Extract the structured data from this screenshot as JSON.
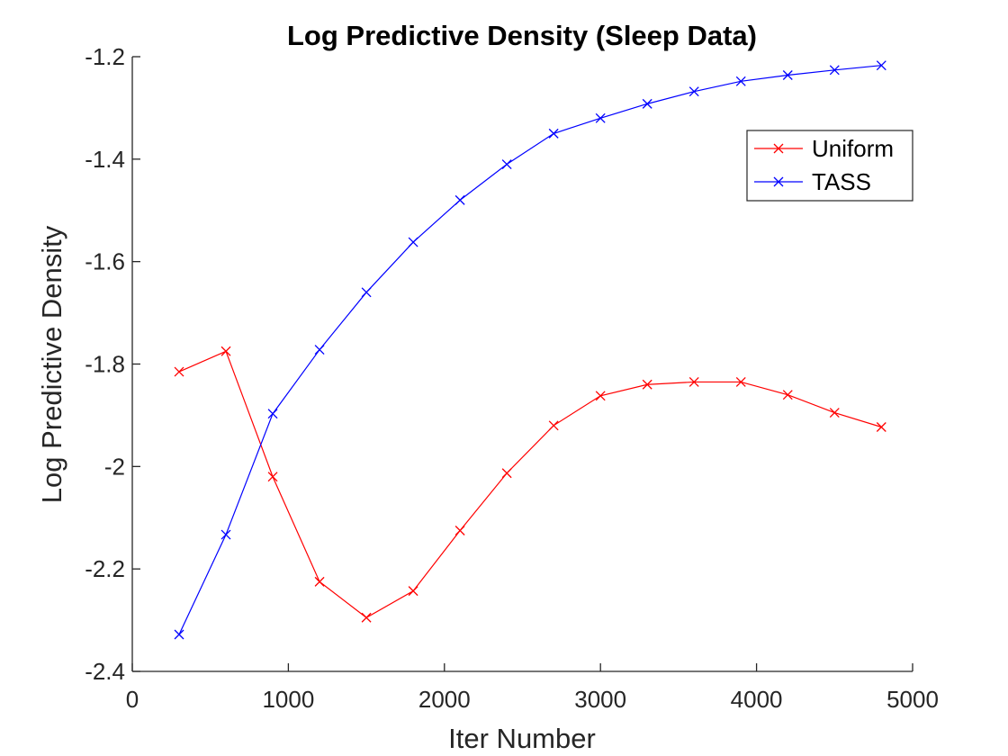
{
  "chart_data": {
    "type": "line",
    "title": "Log Predictive Density (Sleep Data)",
    "xlabel": "Iter Number",
    "ylabel": "Log Predictive Density",
    "xlim": [
      0,
      5000
    ],
    "ylim": [
      -2.4,
      -1.2
    ],
    "x_ticks": [
      0,
      1000,
      2000,
      3000,
      4000,
      5000
    ],
    "x_tick_labels": [
      "0",
      "1000",
      "2000",
      "3000",
      "4000",
      "5000"
    ],
    "y_ticks": [
      -2.4,
      -2.2,
      -2.0,
      -1.8,
      -1.6,
      -1.4,
      -1.2
    ],
    "y_tick_labels": [
      "-2.4",
      "-2.2",
      "-2",
      "-1.8",
      "-1.6",
      "-1.4",
      "-1.2"
    ],
    "grid": false,
    "legend_position": "top-right",
    "x": [
      300,
      600,
      900,
      1200,
      1500,
      1800,
      2100,
      2400,
      2700,
      3000,
      3300,
      3600,
      3900,
      4200,
      4500,
      4800
    ],
    "series": [
      {
        "name": "Uniform",
        "color": "#ff0000",
        "marker": "x",
        "values": [
          -1.815,
          -1.775,
          -2.02,
          -2.225,
          -2.295,
          -2.243,
          -2.125,
          -2.013,
          -1.92,
          -1.862,
          -1.84,
          -1.835,
          -1.835,
          -1.86,
          -1.895,
          -1.923
        ]
      },
      {
        "name": "TASS",
        "color": "#0000ff",
        "marker": "x",
        "values": [
          -2.328,
          -2.133,
          -1.897,
          -1.772,
          -1.66,
          -1.562,
          -1.48,
          -1.41,
          -1.35,
          -1.32,
          -1.292,
          -1.268,
          -1.248,
          -1.236,
          -1.226,
          -1.217
        ]
      }
    ]
  }
}
